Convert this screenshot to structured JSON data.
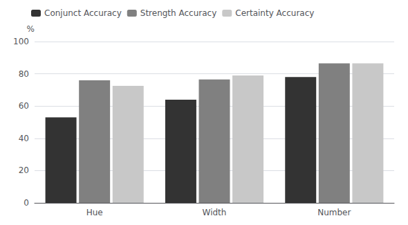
{
  "chart_data": {
    "type": "bar",
    "ylabel": "%",
    "categories": [
      "Hue",
      "Width",
      "Number"
    ],
    "series": [
      {
        "name": "Conjunct Accuracy",
        "color": "#333333",
        "values": [
          53,
          64,
          78
        ]
      },
      {
        "name": "Strength Accuracy",
        "color": "#808080",
        "values": [
          76,
          76.5,
          86.5
        ]
      },
      {
        "name": "Certainty Accuracy",
        "color": "#c8c8c8",
        "values": [
          72.5,
          79,
          86.5
        ]
      }
    ],
    "ylim": [
      0,
      100
    ],
    "yticks": [
      0,
      20,
      40,
      60,
      80,
      100
    ],
    "grid": true,
    "legend": "upper left"
  }
}
